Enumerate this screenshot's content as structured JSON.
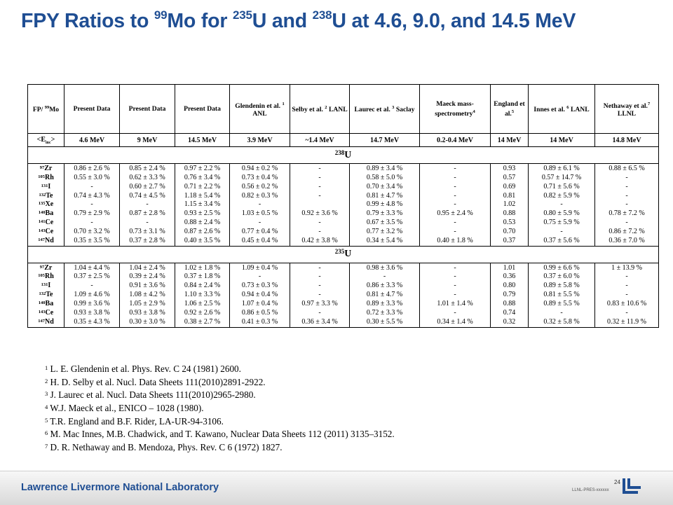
{
  "title": {
    "pre": "FPY Ratios to ",
    "mo_sup": "99",
    "mid1": "Mo for ",
    "u235_sup": "235",
    "mid2": "U and ",
    "u238_sup": "238",
    "post": "U at 4.6, 9.0, and 14.5 MeV"
  },
  "table": {
    "headers": [
      {
        "text": "FP/ ",
        "sup": "99",
        "text2": "Mo"
      },
      {
        "text": "Present Data"
      },
      {
        "text": "Present Data"
      },
      {
        "text": "Present Data"
      },
      {
        "text": "Glendenin et al. ",
        "sup": "1",
        "text2": " ANL"
      },
      {
        "text": "Selby et al. ",
        "sup": "2",
        "text2": " LANL"
      },
      {
        "text": "Laurec et al. ",
        "sup": "3",
        "text2": " Saclay"
      },
      {
        "text": "Maeck mass-spectrometry",
        "sup": "4",
        "text2": ""
      },
      {
        "text": "England et al.",
        "sup": "5",
        "text2": ""
      },
      {
        "text": "Innes et al. ",
        "sup": "6",
        "text2": " LANL"
      },
      {
        "text": "Nethaway et al.",
        "sup": "7",
        "text2": " LLNL"
      }
    ],
    "energy_label": "<E",
    "energy_label_sub": "inc",
    "energy_label_end": ">",
    "energies": [
      "4.6 MeV",
      "9 MeV",
      "14.5 MeV",
      "3.9 MeV",
      "~1.4 MeV",
      "14.7 MeV",
      "0.2-0.4 MeV",
      "14 MeV",
      "14 MeV",
      "14.8 MeV"
    ],
    "sections": [
      {
        "sup": "238",
        "label": "U",
        "nuclides": [
          {
            "sup": "97",
            "el": "Zr"
          },
          {
            "sup": "105",
            "el": "Rh"
          },
          {
            "sup": "131",
            "el": "I"
          },
          {
            "sup": "132",
            "el": "Te"
          },
          {
            "sup": "135",
            "el": "Xe"
          },
          {
            "sup": "140",
            "el": "Ba"
          },
          {
            "sup": "141",
            "el": "Ce"
          },
          {
            "sup": "143",
            "el": "Ce"
          },
          {
            "sup": "147",
            "el": "Nd"
          }
        ],
        "columns": [
          [
            "0.86 ± 2.6 %",
            "0.55 ± 3.0 %",
            "-",
            "0.74 ± 4.3 %",
            "-",
            "0.79 ± 2.9 %",
            "-",
            "0.70 ± 3.2 %",
            "0.35 ± 3.5 %"
          ],
          [
            "0.85 ± 2.4 %",
            "0.62 ± 3.3 %",
            "0.60 ± 2.7 %",
            "0.74 ± 4.5 %",
            "-",
            "0.87 ± 2.8 %",
            "-",
            "0.73 ± 3.1 %",
            "0.37 ± 2.8 %"
          ],
          [
            "0.97 ± 2.2 %",
            "0.76 ± 3.4 %",
            "0.71 ± 2.2 %",
            "1.18 ± 5.4 %",
            "1.15 ± 3.4 %",
            "0.93 ± 2.5 %",
            "0.88 ± 2.4 %",
            "0.87 ± 2.6 %",
            "0.40 ± 3.5 %"
          ],
          [
            "0.94 ± 0.2 %",
            "0.73 ± 0.4 %",
            "0.56 ± 0.2 %",
            "0.82 ± 0.3 %",
            "-",
            "1.03 ± 0.5 %",
            "-",
            "0.77 ± 0.4 %",
            "0.45 ± 0.4 %"
          ],
          [
            "-",
            "-",
            "-",
            "-",
            "",
            "0.92 ± 3.6 %",
            "-",
            "-",
            "0.42 ± 3.8 %"
          ],
          [
            "0.89 ± 3.4 %",
            "0.58 ± 5.0 %",
            "0.70 ± 3.4 %",
            "0.81 ± 4.7 %",
            "0.99 ± 4.8 %",
            "0.79 ± 3.3 %",
            "0.67 ± 3.5 %",
            "0.77 ± 3.2 %",
            "0.34 ± 5.4 %"
          ],
          [
            "-",
            "-",
            "-",
            "-",
            "-",
            "0.95 ± 2.4 %",
            "-",
            "-",
            "0.40 ± 1.8 %"
          ],
          [
            "0.93",
            "0.57",
            "0.69",
            "0.81",
            "1.02",
            "0.88",
            "0.53",
            "0.70",
            "0.37"
          ],
          [
            "0.89 ± 6.1  %",
            "0.57 ± 14.7 %",
            "0.71 ± 5.6  %",
            "0.82 ± 5.9 %",
            "-",
            "0.80 ± 5.9 %",
            "0.75 ± 5.9 %",
            "-",
            "0.37 ± 5.6 %"
          ],
          [
            "0.88 ± 6.5 %",
            "-",
            "-",
            "-",
            "-",
            "0.78 ± 7.2 %",
            "-",
            "0.86 ± 7.2 %",
            "0.36 ± 7.0 %"
          ]
        ]
      },
      {
        "sup": "235",
        "label": "U",
        "nuclides": [
          {
            "sup": "97",
            "el": "Zr"
          },
          {
            "sup": "105",
            "el": "Rh"
          },
          {
            "sup": "131",
            "el": "I"
          },
          {
            "sup": "132",
            "el": "Te"
          },
          {
            "sup": "140",
            "el": "Ba"
          },
          {
            "sup": "143",
            "el": "Ce"
          },
          {
            "sup": "147",
            "el": "Nd"
          }
        ],
        "columns": [
          [
            "1.04 ± 4.4 %",
            "0.37 ± 2.5 %",
            "-",
            "1.09 ± 4.6 %",
            "0.99 ± 3.6 %",
            "0.93 ± 3.8 %",
            "0.35 ± 4.3 %"
          ],
          [
            "1.04 ± 2.4 %",
            "0.39 ± 2.4 %",
            "0.91 ± 3.6 %",
            "1.08 ± 4.2 %",
            "1.05 ± 2.9 %",
            "0.93 ± 3.8 %",
            "0.30 ± 3.0 %"
          ],
          [
            "1.02 ± 1.8 %",
            "0.37 ± 1.8 %",
            "0.84 ± 2.4 %",
            "1.10 ± 3.3 %",
            "1.06 ± 2.5 %",
            "0.92 ± 2.6 %",
            "0.38 ± 2.7 %"
          ],
          [
            "1.09 ± 0.4 %",
            "-",
            "0.73 ± 0.3 %",
            "0.94 ± 0.4 %",
            "1.07 ± 0.4 %",
            "0.86 ± 0.5 %",
            "0.41 ± 0.3 %"
          ],
          [
            "-",
            "-",
            "-",
            "-",
            "0.97 ± 3.3 %",
            "-",
            "0.36 ± 3.4 %"
          ],
          [
            "0.98 ± 3.6 %",
            "-",
            "0.86 ± 3.3 %",
            "0.81 ± 4.7 %",
            "0.89 ± 3.3 %",
            "0.72 ± 3.3 %",
            "0.30 ± 5.5 %"
          ],
          [
            "-",
            "-",
            "-",
            "-",
            "1.01 ± 1.4 %",
            "-",
            "0.34 ± 1.4 %"
          ],
          [
            "1.01",
            "0.36",
            "0.80",
            "0.79",
            "0.88",
            "0.74",
            "0.32"
          ],
          [
            "0.99 ± 6.6 %",
            "0.37 ± 6.0 %",
            "0.89 ± 5.8 %",
            "0.81 ± 5.5 %",
            "0.89 ± 5.5 %",
            "-",
            "0.32 ± 5.8 %"
          ],
          [
            "1 ± 13.9 %",
            "-",
            "-",
            "-",
            "0.83 ± 10.6 %",
            "-",
            "0.32 ± 11.9 %"
          ]
        ]
      }
    ]
  },
  "references": [
    {
      "num": "1",
      "text": " L. E. Glendenin et al. Phys. Rev. C 24 (1981) 2600."
    },
    {
      "num": "2",
      "text": " H. D. Selby et al. Nucl. Data Sheets 111(2010)2891-2922."
    },
    {
      "num": "3",
      "text": " J. Laurec et al. Nucl. Data Sheets 111(2010)2965-2980."
    },
    {
      "num": "4",
      "text": " W.J. Maeck et al., ENICO – 1028 (1980)."
    },
    {
      "num": "5",
      "text": " T.R. England and B.F. Rider, LA-UR-94-3106."
    },
    {
      "num": "6",
      "text": " M. Mac Innes, M.B. Chadwick, and T. Kawano, Nuclear Data Sheets 112 (2011) 3135–3152."
    },
    {
      "num": "7",
      "text": " D. R. Nethaway and B. Mendoza, Phys. Rev. C 6 (1972) 1827."
    }
  ],
  "footer": {
    "lab": "Lawrence Livermore National Laboratory",
    "page": "24",
    "code": "LLNL-PRES-xxxxxx"
  },
  "colors": {
    "title": "#1f4e93",
    "footer_text": "#1f4e93",
    "logo": "#1f4e93"
  },
  "icons": {
    "logo": "llnl-logo-icon"
  }
}
